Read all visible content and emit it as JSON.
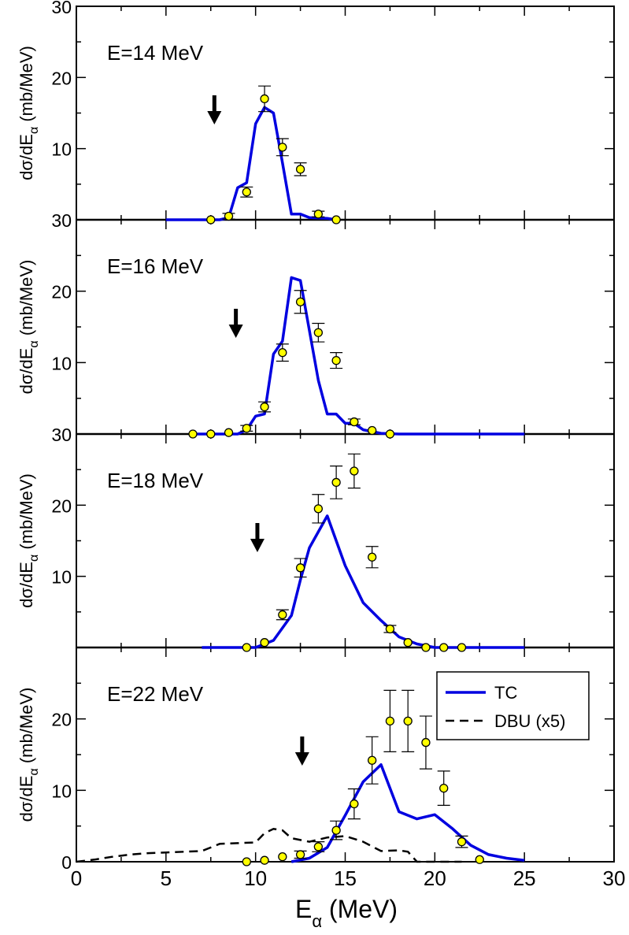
{
  "chart_data": {
    "type": "scatter",
    "xlabel": "E",
    "xlabel_sub": "α",
    "xlabel_unit": "(MeV)",
    "xlim": [
      0,
      30
    ],
    "x_ticks": [
      "0",
      "5",
      "10",
      "15",
      "20",
      "25",
      "30"
    ],
    "legend": {
      "placement": "top-right of bottom panel",
      "entries": [
        {
          "label": "TC",
          "style": "solid",
          "color": "#0000e0"
        },
        {
          "label": "DBU (x5)",
          "style": "dashed",
          "color": "#000000"
        }
      ]
    },
    "colors": {
      "theory": "#0000e0",
      "dbu": "#000000",
      "points_fill": "#ffff00",
      "points_edge": "#000000",
      "arrow": "#000000"
    },
    "panels": [
      {
        "label": "E=14 MeV",
        "ylabel": "dσ/dE",
        "ylabel_sub": "α",
        "ylabel_unit": "(mb/MeV)",
        "ylim": [
          0,
          30
        ],
        "y_ticks": [
          "10",
          "20",
          "30"
        ],
        "arrow_x": 7.7,
        "tc": [
          [
            5,
            0
          ],
          [
            8,
            0
          ],
          [
            8.5,
            0.3
          ],
          [
            9,
            4.5
          ],
          [
            9.5,
            5.2
          ],
          [
            10,
            13.5
          ],
          [
            10.5,
            15.8
          ],
          [
            11,
            15
          ],
          [
            11.5,
            8
          ],
          [
            12,
            0.8
          ],
          [
            12.5,
            0.8
          ],
          [
            13,
            0.3
          ],
          [
            14,
            0.2
          ],
          [
            14.5,
            0
          ]
        ],
        "data": [
          {
            "x": 7.5,
            "y": 0,
            "err": 0.2
          },
          {
            "x": 8.5,
            "y": 0.5,
            "err": 0.4
          },
          {
            "x": 9.5,
            "y": 3.9,
            "err": 0.7
          },
          {
            "x": 10.5,
            "y": 17,
            "err": 1.8
          },
          {
            "x": 11.5,
            "y": 10.2,
            "err": 1.2
          },
          {
            "x": 12.5,
            "y": 7.1,
            "err": 0.9
          },
          {
            "x": 13.5,
            "y": 0.8,
            "err": 0.4
          },
          {
            "x": 14.5,
            "y": 0,
            "err": 0.2
          }
        ]
      },
      {
        "label": "E=16 MeV",
        "ylabel": "dσ/dE",
        "ylabel_sub": "α",
        "ylabel_unit": "(mb/MeV)",
        "ylim": [
          0,
          30
        ],
        "y_ticks": [
          "10",
          "20",
          "30"
        ],
        "arrow_x": 8.9,
        "tc": [
          [
            6.5,
            0
          ],
          [
            9,
            0
          ],
          [
            9.5,
            0.6
          ],
          [
            10,
            2.5
          ],
          [
            10.5,
            2.8
          ],
          [
            11,
            11.2
          ],
          [
            11.5,
            13
          ],
          [
            12,
            21.9
          ],
          [
            12.5,
            21.5
          ],
          [
            13,
            14.5
          ],
          [
            13.5,
            7.5
          ],
          [
            14,
            2.8
          ],
          [
            14.5,
            2.8
          ],
          [
            15,
            1.5
          ],
          [
            15.5,
            1.5
          ],
          [
            16,
            0.6
          ],
          [
            17,
            0.1
          ],
          [
            18,
            0
          ],
          [
            25,
            0
          ]
        ],
        "data": [
          {
            "x": 6.5,
            "y": 0,
            "err": 0.2
          },
          {
            "x": 7.5,
            "y": 0,
            "err": 0.2
          },
          {
            "x": 8.5,
            "y": 0.2,
            "err": 0.2
          },
          {
            "x": 9.5,
            "y": 0.8,
            "err": 0.4
          },
          {
            "x": 10.5,
            "y": 3.8,
            "err": 0.7
          },
          {
            "x": 11.5,
            "y": 11.4,
            "err": 1.2
          },
          {
            "x": 12.5,
            "y": 18.5,
            "err": 1.6
          },
          {
            "x": 13.5,
            "y": 14.2,
            "err": 1.3
          },
          {
            "x": 14.5,
            "y": 10.3,
            "err": 1.1
          },
          {
            "x": 15.5,
            "y": 1.7,
            "err": 0.4
          },
          {
            "x": 16.5,
            "y": 0.5,
            "err": 0.3
          },
          {
            "x": 17.5,
            "y": 0,
            "err": 0.2
          }
        ]
      },
      {
        "label": "E=18 MeV",
        "ylabel": "dσ/dE",
        "ylabel_sub": "α",
        "ylabel_unit": "(mb/MeV)",
        "ylim": [
          0,
          30
        ],
        "y_ticks": [
          "10",
          "20",
          "30"
        ],
        "arrow_x": 10.1,
        "tc": [
          [
            7,
            0
          ],
          [
            10,
            0
          ],
          [
            11,
            1
          ],
          [
            12,
            4.5
          ],
          [
            12.5,
            9.5
          ],
          [
            13,
            14
          ],
          [
            14,
            18.5
          ],
          [
            15,
            11.5
          ],
          [
            16,
            6.3
          ],
          [
            17,
            3.8
          ],
          [
            18,
            1.5
          ],
          [
            19,
            0.5
          ],
          [
            20,
            0
          ],
          [
            25,
            0
          ]
        ],
        "data": [
          {
            "x": 9.5,
            "y": 0,
            "err": 0.2
          },
          {
            "x": 10.5,
            "y": 0.7,
            "err": 0.3
          },
          {
            "x": 11.5,
            "y": 4.6,
            "err": 0.7
          },
          {
            "x": 12.5,
            "y": 11.2,
            "err": 1.3
          },
          {
            "x": 13.5,
            "y": 19.5,
            "err": 2
          },
          {
            "x": 14.5,
            "y": 23.2,
            "err": 2.3
          },
          {
            "x": 15.5,
            "y": 24.8,
            "err": 2.4
          },
          {
            "x": 16.5,
            "y": 12.7,
            "err": 1.5
          },
          {
            "x": 17.5,
            "y": 2.6,
            "err": 0.5
          },
          {
            "x": 18.5,
            "y": 0.7,
            "err": 0.3
          },
          {
            "x": 19.5,
            "y": 0,
            "err": 0.2
          },
          {
            "x": 20.5,
            "y": 0,
            "err": 0.2
          },
          {
            "x": 21.5,
            "y": 0,
            "err": 0.2
          }
        ]
      },
      {
        "label": "E=22 MeV",
        "ylabel": "dσ/dE",
        "ylabel_sub": "α",
        "ylabel_unit": "(mb/MeV)",
        "ylim": [
          0,
          30
        ],
        "y_ticks": [
          "0",
          "10",
          "20"
        ],
        "arrow_x": 12.6,
        "tc": [
          [
            12,
            0
          ],
          [
            13,
            0.5
          ],
          [
            14,
            2
          ],
          [
            15,
            6.5
          ],
          [
            16,
            11.2
          ],
          [
            17,
            13.6
          ],
          [
            18,
            7
          ],
          [
            19,
            6
          ],
          [
            20,
            6.6
          ],
          [
            21,
            4.6
          ],
          [
            22,
            2.3
          ],
          [
            23,
            1
          ],
          [
            24,
            0.5
          ],
          [
            25,
            0.2
          ]
        ],
        "dbu": [
          [
            0,
            0
          ],
          [
            1,
            0.3
          ],
          [
            2,
            0.7
          ],
          [
            3,
            1
          ],
          [
            4,
            1.2
          ],
          [
            5,
            1.3
          ],
          [
            6,
            1.4
          ],
          [
            7,
            1.5
          ],
          [
            8,
            2.5
          ],
          [
            9,
            2.6
          ],
          [
            10,
            2.7
          ],
          [
            10.5,
            4
          ],
          [
            11,
            4.6
          ],
          [
            11.5,
            4.4
          ],
          [
            12,
            3.3
          ],
          [
            13,
            2.8
          ],
          [
            14,
            3.4
          ],
          [
            15,
            3.6
          ],
          [
            16,
            2.8
          ],
          [
            17,
            1.5
          ],
          [
            18,
            1.6
          ],
          [
            18.5,
            1.4
          ],
          [
            19,
            0
          ],
          [
            21,
            0
          ],
          [
            21.5,
            0
          ]
        ],
        "data": [
          {
            "x": 9.5,
            "y": 0,
            "err": 0.2
          },
          {
            "x": 10.5,
            "y": 0.2,
            "err": 0.3
          },
          {
            "x": 11.5,
            "y": 0.7,
            "err": 0.3
          },
          {
            "x": 12.5,
            "y": 1,
            "err": 0.5
          },
          {
            "x": 13.5,
            "y": 2.1,
            "err": 0.7
          },
          {
            "x": 14.5,
            "y": 4.4,
            "err": 1.3
          },
          {
            "x": 15.5,
            "y": 8.1,
            "err": 2.1
          },
          {
            "x": 16.5,
            "y": 14.2,
            "err": 3.3
          },
          {
            "x": 17.5,
            "y": 19.7,
            "err": 4.3
          },
          {
            "x": 18.5,
            "y": 19.7,
            "err": 4.3
          },
          {
            "x": 19.5,
            "y": 16.7,
            "err": 3.7
          },
          {
            "x": 20.5,
            "y": 10.3,
            "err": 2.4
          },
          {
            "x": 21.5,
            "y": 2.8,
            "err": 0.8
          },
          {
            "x": 22.5,
            "y": 0.3,
            "err": 0.2
          }
        ]
      }
    ]
  }
}
